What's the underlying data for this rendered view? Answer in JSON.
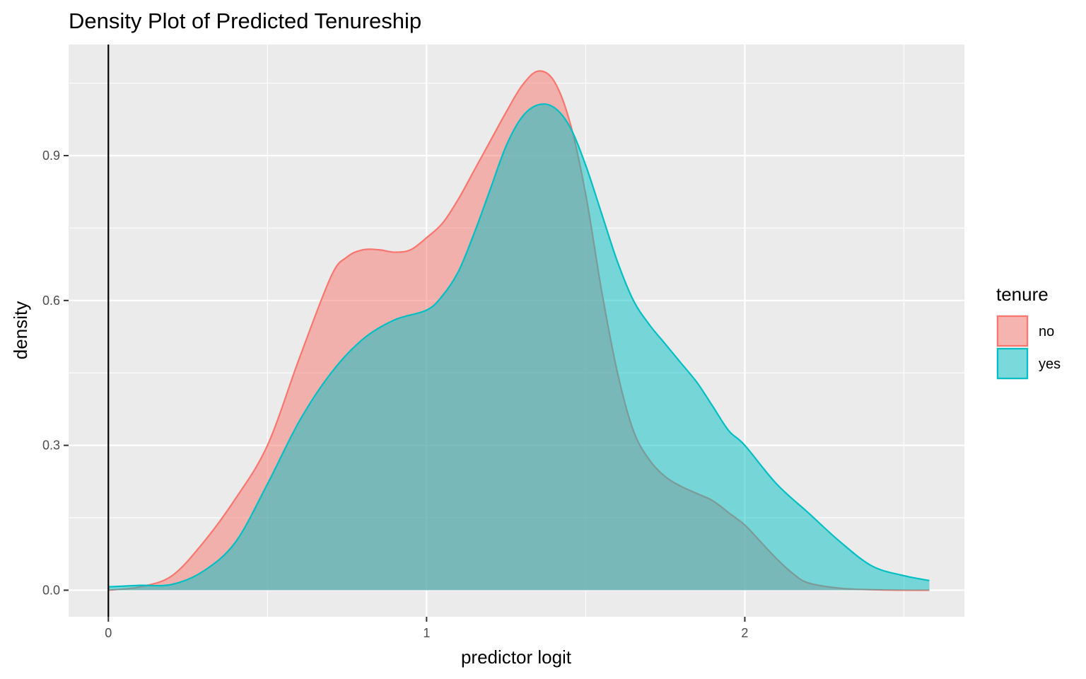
{
  "chart_data": {
    "type": "area",
    "title": "Density Plot of Predicted Tenureship",
    "xlabel": "predictor logit",
    "ylabel": "density",
    "xlim": [
      -0.125,
      2.69
    ],
    "ylim": [
      -0.055,
      1.13
    ],
    "x_ticks": [
      0,
      1,
      2
    ],
    "x_tick_labels": [
      "0",
      "1",
      "2"
    ],
    "y_ticks": [
      0.0,
      0.3,
      0.6,
      0.9
    ],
    "y_tick_labels": [
      "0.0",
      "0.3",
      "0.6",
      "0.9"
    ],
    "x_minor_gridlines": [
      0.5,
      1.5,
      2.5
    ],
    "y_minor_gridlines": [
      0.15,
      0.45,
      0.75,
      1.05
    ],
    "vline_x": 0,
    "grid": true,
    "panel_background": "#ebebeb",
    "legend": {
      "title": "tenure",
      "placement": "right",
      "entries": [
        "no",
        "yes"
      ]
    },
    "series": [
      {
        "name": "no",
        "line_color": "#f8766d",
        "fill_color": "#f8766d",
        "fill_opacity": 0.5,
        "x": [
          0.0,
          0.1,
          0.2,
          0.3,
          0.4,
          0.5,
          0.6,
          0.7,
          0.75,
          0.8,
          0.85,
          0.9,
          0.95,
          1.0,
          1.05,
          1.1,
          1.15,
          1.2,
          1.25,
          1.3,
          1.35,
          1.4,
          1.45,
          1.5,
          1.55,
          1.6,
          1.65,
          1.7,
          1.75,
          1.8,
          1.85,
          1.9,
          1.95,
          2.0,
          2.05,
          2.1,
          2.15,
          2.2,
          2.3,
          2.4,
          2.5,
          2.58
        ],
        "y": [
          0.0,
          0.007,
          0.03,
          0.1,
          0.19,
          0.3,
          0.48,
          0.65,
          0.69,
          0.705,
          0.705,
          0.7,
          0.705,
          0.73,
          0.76,
          0.81,
          0.87,
          0.93,
          0.99,
          1.045,
          1.075,
          1.055,
          0.97,
          0.82,
          0.62,
          0.45,
          0.33,
          0.27,
          0.235,
          0.215,
          0.2,
          0.185,
          0.16,
          0.135,
          0.1,
          0.065,
          0.035,
          0.015,
          0.004,
          0.001,
          0.0,
          0.0
        ]
      },
      {
        "name": "yes",
        "line_color": "#00bfc4",
        "fill_color": "#00bfc4",
        "fill_opacity": 0.5,
        "x": [
          0.0,
          0.1,
          0.2,
          0.3,
          0.4,
          0.5,
          0.6,
          0.7,
          0.8,
          0.9,
          1.0,
          1.05,
          1.1,
          1.15,
          1.2,
          1.25,
          1.3,
          1.35,
          1.4,
          1.45,
          1.5,
          1.55,
          1.6,
          1.65,
          1.7,
          1.75,
          1.8,
          1.85,
          1.9,
          1.95,
          2.0,
          2.1,
          2.2,
          2.3,
          2.4,
          2.5,
          2.58
        ],
        "y": [
          0.007,
          0.01,
          0.012,
          0.04,
          0.1,
          0.22,
          0.35,
          0.45,
          0.52,
          0.56,
          0.58,
          0.61,
          0.66,
          0.74,
          0.83,
          0.92,
          0.98,
          1.005,
          1.0,
          0.96,
          0.88,
          0.78,
          0.68,
          0.6,
          0.55,
          0.51,
          0.47,
          0.43,
          0.38,
          0.33,
          0.3,
          0.22,
          0.16,
          0.1,
          0.05,
          0.03,
          0.02
        ]
      }
    ]
  }
}
